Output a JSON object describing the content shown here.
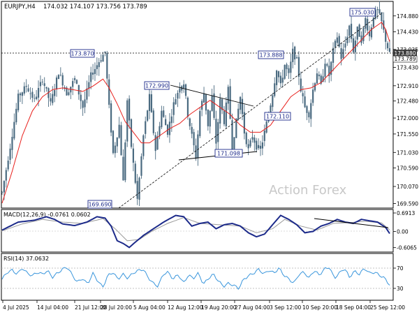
{
  "header": {
    "symbol": "EURJPY,H4",
    "ohlc": "174.032 174.107 173.756 173.789"
  },
  "watermark": "Action Forex",
  "colors": {
    "candle": "#4a6a80",
    "ma": "#e8201c",
    "macd": "#1c2a8a",
    "signal": "#9a9a9a",
    "rsi": "#3a96dc",
    "trend": "#000000",
    "label_border": "#1c2a8a",
    "current_price_bg": "#3c3c3c"
  },
  "chart_data": [
    {
      "type": "candlestick",
      "title": "EURJPY,H4",
      "ylim": [
        169.5,
        175.25
      ],
      "y_ticks": [
        "174.880",
        "174.430",
        "173.935",
        "173.430",
        "172.910",
        "172.480",
        "172.000",
        "171.550",
        "171.030",
        "170.590",
        "170.070",
        "169.590"
      ],
      "x_ticks": [
        "4 Jul 2025",
        "14 Jul 04:00",
        "21 Jul 12:00",
        "28 Jul 20:00",
        "5 Aug 04:00",
        "12 Aug 12:00",
        "19 Aug 20:00",
        "27 Aug 04:00",
        "3 Sep 12:00",
        "10 Sep 20:00",
        "18 Sep 04:00",
        "25 Sep 12:00"
      ],
      "current_price": "173.789",
      "reference_price": "173.880",
      "annotations": [
        "173.870",
        "169.690",
        "172.990",
        "171.098",
        "173.888",
        "172.110",
        "175.030"
      ],
      "price_path": [
        [
          0,
          169.9
        ],
        [
          4,
          171.2
        ],
        [
          8,
          172.6
        ],
        [
          12,
          172.9
        ],
        [
          16,
          172.5
        ],
        [
          20,
          173.1
        ],
        [
          24,
          172.4
        ],
        [
          28,
          173.3
        ],
        [
          32,
          172.7
        ],
        [
          36,
          173.1
        ],
        [
          40,
          172.3
        ],
        [
          44,
          173.2
        ],
        [
          48,
          173.6
        ],
        [
          51,
          173.87
        ],
        [
          53,
          172.3
        ],
        [
          55,
          171.0
        ],
        [
          58,
          171.8
        ],
        [
          60,
          170.2
        ],
        [
          62,
          172.5
        ],
        [
          64,
          171.2
        ],
        [
          67,
          169.7
        ],
        [
          70,
          171.5
        ],
        [
          73,
          172.6
        ],
        [
          76,
          171.1
        ],
        [
          79,
          172.2
        ],
        [
          82,
          171.6
        ],
        [
          85,
          172.4
        ],
        [
          88,
          172.9
        ],
        [
          90,
          172.99
        ],
        [
          92,
          172.1
        ],
        [
          94,
          171.5
        ],
        [
          96,
          170.9
        ],
        [
          98,
          172.2
        ],
        [
          100,
          172.7
        ],
        [
          102,
          171.8
        ],
        [
          104,
          172.6
        ],
        [
          106,
          171.3
        ],
        [
          108,
          172.5
        ],
        [
          110,
          171.9
        ],
        [
          112,
          172.8
        ],
        [
          114,
          171.2
        ],
        [
          116,
          171.9
        ],
        [
          118,
          172.6
        ],
        [
          120,
          171.6
        ],
        [
          122,
          171.1
        ],
        [
          124,
          171.5
        ],
        [
          126,
          171.2
        ],
        [
          128,
          171.098
        ],
        [
          130,
          171.6
        ],
        [
          132,
          172.1
        ],
        [
          134,
          172.7
        ],
        [
          136,
          173.4
        ],
        [
          138,
          172.9
        ],
        [
          140,
          173.5
        ],
        [
          142,
          173.2
        ],
        [
          144,
          173.888
        ],
        [
          146,
          173.6
        ],
        [
          148,
          172.8
        ],
        [
          150,
          172.3
        ],
        [
          152,
          172.11
        ],
        [
          154,
          172.8
        ],
        [
          156,
          173.3
        ],
        [
          158,
          172.9
        ],
        [
          160,
          173.6
        ],
        [
          162,
          173.2
        ],
        [
          164,
          173.9
        ],
        [
          166,
          174.3
        ],
        [
          168,
          173.7
        ],
        [
          170,
          174.1
        ],
        [
          172,
          174.6
        ],
        [
          174,
          173.9
        ],
        [
          176,
          174.5
        ],
        [
          178,
          174.2
        ],
        [
          180,
          174.8
        ],
        [
          182,
          174.3
        ],
        [
          184,
          174.9
        ],
        [
          186,
          175.03
        ],
        [
          188,
          174.7
        ],
        [
          190,
          174.2
        ],
        [
          192,
          173.789
        ]
      ],
      "moving_average": [
        [
          0,
          169.6
        ],
        [
          5,
          170.5
        ],
        [
          10,
          171.5
        ],
        [
          15,
          172.2
        ],
        [
          20,
          172.6
        ],
        [
          25,
          172.8
        ],
        [
          30,
          172.85
        ],
        [
          35,
          172.8
        ],
        [
          40,
          172.75
        ],
        [
          45,
          172.9
        ],
        [
          50,
          173.1
        ],
        [
          53,
          172.85
        ],
        [
          57,
          172.4
        ],
        [
          61,
          171.9
        ],
        [
          65,
          171.6
        ],
        [
          69,
          171.3
        ],
        [
          73,
          171.3
        ],
        [
          78,
          171.5
        ],
        [
          83,
          171.7
        ],
        [
          88,
          171.85
        ],
        [
          93,
          172.1
        ],
        [
          98,
          172.3
        ],
        [
          103,
          172.5
        ],
        [
          108,
          172.3
        ],
        [
          113,
          172.1
        ],
        [
          118,
          171.8
        ],
        [
          123,
          171.6
        ],
        [
          128,
          171.6
        ],
        [
          133,
          171.8
        ],
        [
          138,
          172.2
        ],
        [
          143,
          172.6
        ],
        [
          148,
          172.8
        ],
        [
          153,
          172.85
        ],
        [
          158,
          173.0
        ],
        [
          163,
          173.3
        ],
        [
          168,
          173.6
        ],
        [
          173,
          173.9
        ],
        [
          178,
          174.2
        ],
        [
          183,
          174.5
        ],
        [
          188,
          174.7
        ],
        [
          190,
          174.5
        ],
        [
          192,
          174.15
        ]
      ]
    },
    {
      "type": "line",
      "title": "MACD(12,26,9) -0.0761 0.0602",
      "ylim": [
        -0.72,
        0.77
      ],
      "y_ticks": [
        "0.6913",
        "0.00",
        "-0.6065"
      ],
      "series": [
        {
          "name": "MACD",
          "points": [
            [
              0,
              0.05
            ],
            [
              8,
              0.35
            ],
            [
              16,
              0.42
            ],
            [
              22,
              0.55
            ],
            [
              26,
              0.45
            ],
            [
              30,
              0.28
            ],
            [
              36,
              0.22
            ],
            [
              42,
              0.35
            ],
            [
              47,
              0.55
            ],
            [
              51,
              0.5
            ],
            [
              54,
              0.2
            ],
            [
              57,
              -0.35
            ],
            [
              60,
              -0.45
            ],
            [
              63,
              -0.6
            ],
            [
              66,
              -0.4
            ],
            [
              70,
              -0.15
            ],
            [
              75,
              0.1
            ],
            [
              80,
              0.35
            ],
            [
              86,
              0.6
            ],
            [
              90,
              0.55
            ],
            [
              94,
              0.2
            ],
            [
              98,
              0.3
            ],
            [
              102,
              0.35
            ],
            [
              106,
              0.1
            ],
            [
              110,
              0.25
            ],
            [
              114,
              0.3
            ],
            [
              118,
              0.2
            ],
            [
              122,
              -0.05
            ],
            [
              126,
              -0.2
            ],
            [
              130,
              -0.1
            ],
            [
              134,
              0.25
            ],
            [
              138,
              0.6
            ],
            [
              142,
              0.45
            ],
            [
              146,
              0.25
            ],
            [
              150,
              -0.05
            ],
            [
              154,
              0.0
            ],
            [
              158,
              0.2
            ],
            [
              162,
              0.3
            ],
            [
              166,
              0.45
            ],
            [
              170,
              0.35
            ],
            [
              174,
              0.3
            ],
            [
              178,
              0.45
            ],
            [
              182,
              0.4
            ],
            [
              186,
              0.35
            ],
            [
              190,
              0.15
            ],
            [
              192,
              -0.08
            ]
          ]
        },
        {
          "name": "Signal",
          "points": [
            [
              0,
              0.02
            ],
            [
              10,
              0.28
            ],
            [
              20,
              0.45
            ],
            [
              30,
              0.35
            ],
            [
              40,
              0.3
            ],
            [
              50,
              0.48
            ],
            [
              56,
              0.1
            ],
            [
              62,
              -0.35
            ],
            [
              68,
              -0.3
            ],
            [
              74,
              0.0
            ],
            [
              82,
              0.3
            ],
            [
              90,
              0.52
            ],
            [
              98,
              0.3
            ],
            [
              108,
              0.25
            ],
            [
              118,
              0.2
            ],
            [
              126,
              -0.05
            ],
            [
              134,
              0.1
            ],
            [
              140,
              0.45
            ],
            [
              148,
              0.2
            ],
            [
              156,
              0.05
            ],
            [
              164,
              0.3
            ],
            [
              172,
              0.33
            ],
            [
              180,
              0.38
            ],
            [
              188,
              0.32
            ],
            [
              192,
              0.06
            ]
          ]
        }
      ]
    },
    {
      "type": "line",
      "title": "RSI(14) 37.0632",
      "ylim": [
        0,
        100
      ],
      "y_ticks": [
        "70",
        "30"
      ],
      "values": [
        48,
        62,
        66,
        58,
        70,
        60,
        55,
        62,
        58,
        65,
        52,
        60,
        68,
        72,
        55,
        42,
        50,
        38,
        60,
        45,
        32,
        55,
        62,
        48,
        58,
        50,
        60,
        65,
        68,
        52,
        40,
        34,
        58,
        62,
        48,
        58,
        40,
        56,
        50,
        60,
        38,
        50,
        58,
        44,
        34,
        40,
        36,
        30,
        48,
        55,
        60,
        68,
        58,
        66,
        60,
        70,
        56,
        48,
        40,
        58,
        62,
        50,
        66,
        56,
        68,
        72,
        50,
        60,
        70,
        52,
        64,
        58,
        70,
        60,
        62,
        56,
        50,
        37
      ]
    }
  ]
}
